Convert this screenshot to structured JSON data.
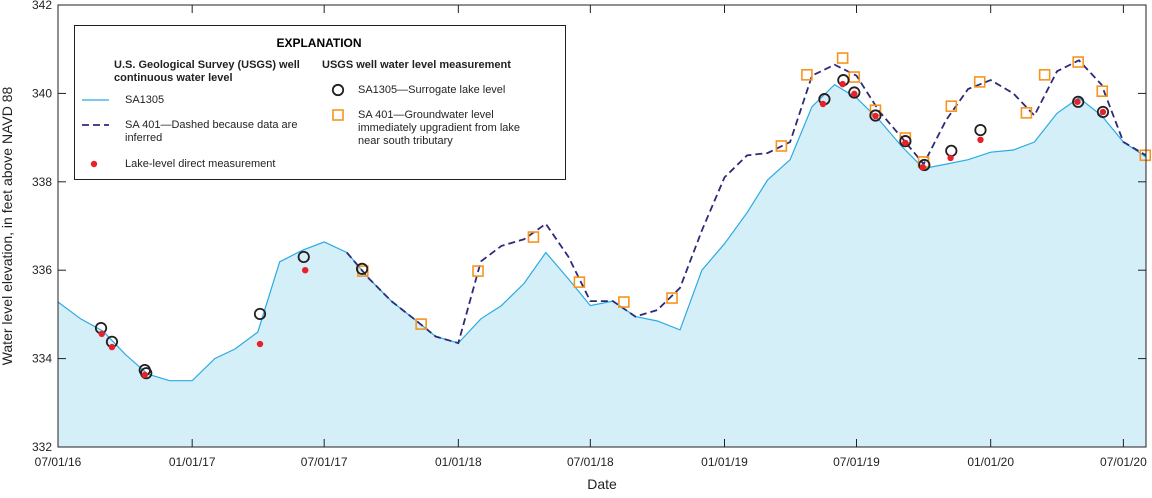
{
  "chart_data": {
    "type": "line",
    "x_label": "Date",
    "y_label": "Water level elevation, in feet above NAVD 88",
    "legend_title": "EXPLANATION",
    "legend_headings": [
      "U.S. Geological Survey (USGS) well continuous water level",
      "USGS well water level measurement"
    ],
    "xlim": [
      "2016-07-01",
      "2020-08-01"
    ],
    "xticks": [
      {
        "value": "2016-07-01",
        "label": "07/01/16"
      },
      {
        "value": "2017-01-01",
        "label": "01/01/17"
      },
      {
        "value": "2017-07-01",
        "label": "07/01/17"
      },
      {
        "value": "2018-01-01",
        "label": "01/01/18"
      },
      {
        "value": "2018-07-01",
        "label": "07/01/18"
      },
      {
        "value": "2019-01-01",
        "label": "01/01/19"
      },
      {
        "value": "2019-07-01",
        "label": "07/01/19"
      },
      {
        "value": "2020-01-01",
        "label": "01/01/20"
      },
      {
        "value": "2020-07-01",
        "label": "07/01/20"
      }
    ],
    "ylim": [
      332,
      342
    ],
    "yticks": [
      332,
      334,
      336,
      338,
      340,
      342
    ],
    "series": [
      {
        "name": "SA1305",
        "style": "line",
        "color": "#29abe2",
        "fill": "#d5eff9",
        "x": [
          "2016-07-01",
          "2016-08-01",
          "2016-09-01",
          "2016-10-01",
          "2016-11-01",
          "2016-12-01",
          "2017-01-01",
          "2017-02-01",
          "2017-03-01",
          "2017-04-01",
          "2017-05-01",
          "2017-06-01",
          "2017-07-01",
          "2017-08-01",
          "2017-09-01",
          "2017-10-01",
          "2017-11-01",
          "2017-12-01",
          "2018-01-01",
          "2018-02-01",
          "2018-03-01",
          "2018-04-01",
          "2018-05-01",
          "2018-06-01",
          "2018-07-01",
          "2018-08-01",
          "2018-09-01",
          "2018-10-01",
          "2018-11-01",
          "2018-12-01",
          "2019-01-01",
          "2019-02-01",
          "2019-03-01",
          "2019-04-01",
          "2019-05-01",
          "2019-06-01",
          "2019-07-01",
          "2019-08-01",
          "2019-09-01",
          "2019-10-01",
          "2019-11-01",
          "2019-12-01",
          "2020-01-01",
          "2020-02-01",
          "2020-03-01",
          "2020-04-01",
          "2020-05-01",
          "2020-06-01",
          "2020-07-01",
          "2020-08-01"
        ],
        "values": [
          335.28,
          334.9,
          334.62,
          334.1,
          333.65,
          333.5,
          333.5,
          334.0,
          334.22,
          334.6,
          336.19,
          336.45,
          336.64,
          336.4,
          335.8,
          335.3,
          334.9,
          334.5,
          334.35,
          334.9,
          335.2,
          335.7,
          336.4,
          335.8,
          335.2,
          335.3,
          334.95,
          334.85,
          334.65,
          336.0,
          336.6,
          337.3,
          338.04,
          338.5,
          339.7,
          340.2,
          339.9,
          339.4,
          338.8,
          338.3,
          338.4,
          338.5,
          338.67,
          338.72,
          338.9,
          339.55,
          339.9,
          339.5,
          338.9,
          338.56
        ]
      },
      {
        "name": "SA 401—Dashed because data are inferred",
        "style": "dashed",
        "color": "#2e2a78",
        "x": [
          "2016-07-01",
          "2016-08-01",
          "2016-09-01",
          "2016-10-01",
          "2016-11-01",
          "2016-12-01",
          "2017-01-01",
          "2017-02-01",
          "2017-03-01",
          "2017-04-01",
          "2017-05-01",
          "2017-06-01",
          "2017-07-01",
          "2017-08-01",
          "2017-09-01",
          "2017-10-01",
          "2017-11-01",
          "2017-12-01",
          "2018-01-01",
          "2018-02-01",
          "2018-03-01",
          "2018-04-01",
          "2018-05-01",
          "2018-06-01",
          "2018-07-01",
          "2018-08-01",
          "2018-09-01",
          "2018-10-01",
          "2018-11-01",
          "2018-12-01",
          "2019-01-01",
          "2019-02-01",
          "2019-03-01",
          "2019-04-01",
          "2019-05-01",
          "2019-06-01",
          "2019-07-01",
          "2019-08-01",
          "2019-09-01",
          "2019-10-01",
          "2019-11-01",
          "2019-12-01",
          "2020-01-01",
          "2020-02-01",
          "2020-03-01",
          "2020-04-01",
          "2020-05-01",
          "2020-06-01",
          "2020-07-01",
          "2020-08-01"
        ],
        "values": [
          null,
          null,
          null,
          null,
          null,
          null,
          null,
          null,
          null,
          null,
          null,
          null,
          null,
          336.4,
          335.8,
          335.3,
          334.9,
          334.5,
          334.35,
          336.2,
          336.55,
          336.7,
          337.05,
          336.3,
          335.3,
          335.3,
          334.95,
          335.1,
          335.6,
          336.9,
          338.1,
          338.6,
          338.65,
          338.9,
          340.4,
          340.65,
          340.4,
          339.6,
          339.0,
          338.4,
          339.4,
          340.1,
          340.3,
          340.0,
          339.5,
          340.5,
          340.75,
          340.2,
          338.9,
          338.6
        ]
      },
      {
        "name": "Lake-level direct measurement",
        "style": "dot",
        "color": "#e8202a",
        "x": [
          "2016-08-30",
          "2016-09-13",
          "2016-10-28",
          "2017-04-04",
          "2017-06-05",
          "2019-05-16",
          "2019-06-12",
          "2019-06-28",
          "2019-07-27",
          "2019-09-06",
          "2019-09-30",
          "2019-11-07",
          "2019-12-18",
          "2020-04-29",
          "2020-06-03"
        ],
        "values": [
          334.56,
          334.26,
          333.63,
          334.33,
          336.0,
          339.76,
          340.21,
          339.99,
          339.49,
          338.88,
          338.33,
          338.54,
          338.95,
          339.81,
          339.58
        ]
      },
      {
        "name": "SA1305—Surrogate lake level",
        "style": "circle",
        "color": "#231f20",
        "x": [
          "2016-08-29",
          "2016-09-13",
          "2016-10-28",
          "2016-10-30",
          "2017-04-04",
          "2017-06-03",
          "2017-08-22",
          "2019-05-18",
          "2019-06-13",
          "2019-06-28",
          "2019-07-27",
          "2019-09-06",
          "2019-10-02",
          "2019-11-08",
          "2019-12-18",
          "2020-04-30",
          "2020-06-03"
        ],
        "values": [
          334.69,
          334.38,
          333.74,
          333.67,
          335.01,
          336.3,
          336.03,
          339.87,
          340.3,
          340.02,
          339.5,
          338.92,
          338.38,
          338.7,
          339.17,
          339.81,
          339.58
        ]
      },
      {
        "name": "SA 401—Groundwater level immediately upgradient from lake near south tributary",
        "style": "square",
        "color": "#f7941d",
        "x": [
          "2017-08-23",
          "2017-11-11",
          "2018-01-28",
          "2018-04-14",
          "2018-06-16",
          "2018-08-16",
          "2018-10-21",
          "2019-03-20",
          "2019-04-24",
          "2019-06-12",
          "2019-06-28",
          "2019-07-27",
          "2019-09-06",
          "2019-10-01",
          "2019-11-08",
          "2019-12-17",
          "2020-02-19",
          "2020-03-15",
          "2020-04-30",
          "2020-06-02",
          "2020-07-31"
        ],
        "values": [
          335.98,
          334.78,
          335.98,
          336.75,
          335.73,
          335.28,
          335.37,
          338.81,
          340.42,
          340.8,
          340.37,
          339.62,
          338.99,
          338.45,
          339.71,
          340.26,
          339.56,
          340.42,
          340.71,
          340.05,
          338.6
        ]
      }
    ]
  }
}
